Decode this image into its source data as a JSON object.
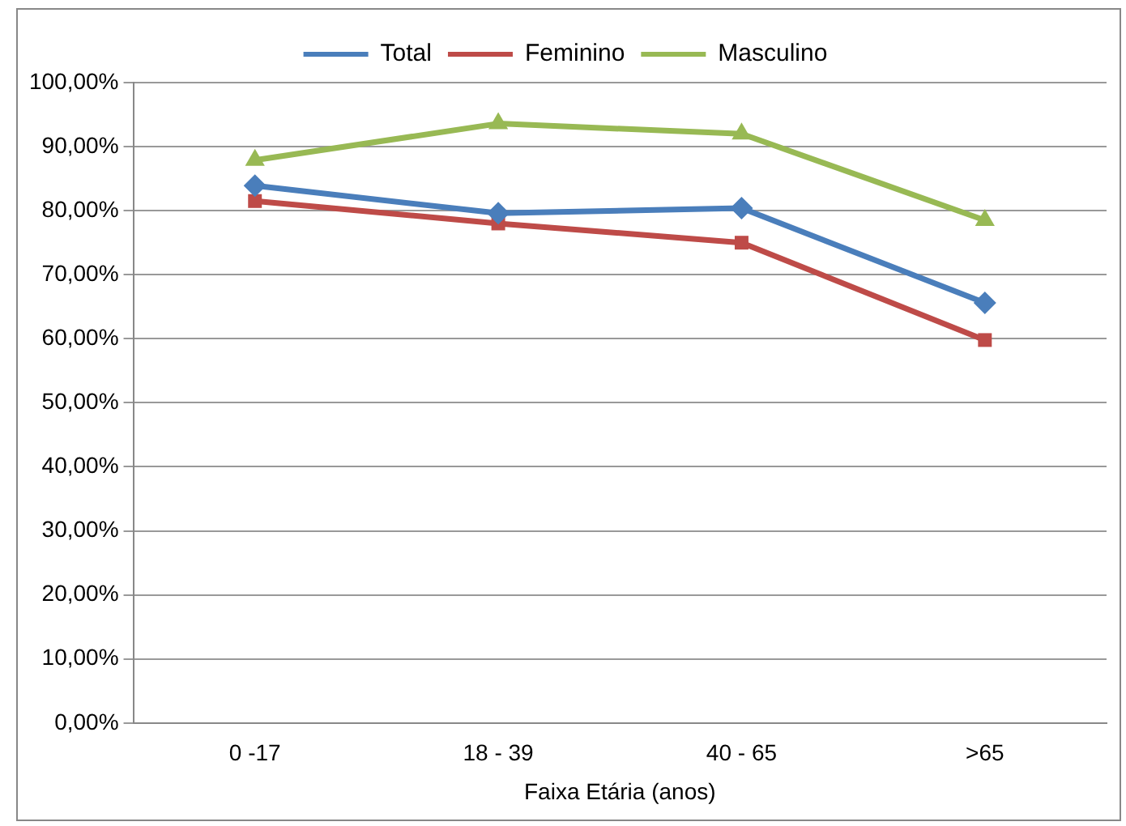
{
  "chart_data": {
    "type": "line",
    "xlabel": "Faixa Etária (anos)",
    "categories": [
      "0 -17",
      "18 - 39",
      "40 - 65",
      ">65"
    ],
    "series": [
      {
        "name": "Total",
        "color": "#4a7ebb",
        "marker": "diamond",
        "values": [
          83.9,
          79.6,
          80.4,
          65.6
        ]
      },
      {
        "name": "Feminino",
        "color": "#be4b48",
        "marker": "square",
        "values": [
          81.5,
          78.0,
          75.0,
          59.8
        ]
      },
      {
        "name": "Masculino",
        "color": "#98b954",
        "marker": "triangle",
        "values": [
          87.9,
          93.6,
          92.0,
          78.5
        ]
      }
    ],
    "ylim": [
      0,
      100
    ],
    "yticks": [
      {
        "value": 0,
        "label": "0,00%"
      },
      {
        "value": 10,
        "label": "10,00%"
      },
      {
        "value": 20,
        "label": "20,00%"
      },
      {
        "value": 30,
        "label": "30,00%"
      },
      {
        "value": 40,
        "label": "40,00%"
      },
      {
        "value": 50,
        "label": "50,00%"
      },
      {
        "value": 60,
        "label": "60,00%"
      },
      {
        "value": 70,
        "label": "70,00%"
      },
      {
        "value": 80,
        "label": "80,00%"
      },
      {
        "value": 90,
        "label": "90,00%"
      },
      {
        "value": 100,
        "label": "100,00%"
      }
    ],
    "grid": "y",
    "legend": "top",
    "line_style": "solid"
  }
}
